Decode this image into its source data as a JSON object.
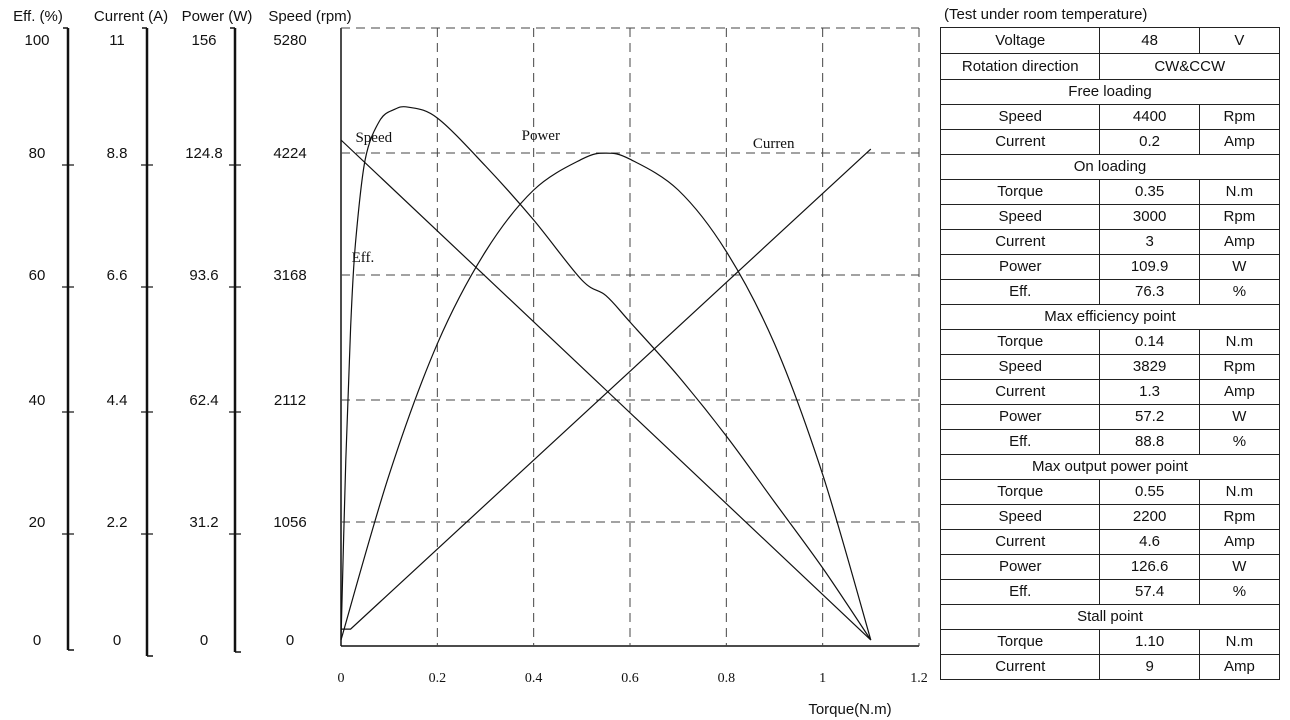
{
  "axes": [
    {
      "id": "eff",
      "title": "Eff. (%)",
      "ticks": [
        "100",
        "80",
        "60",
        "40",
        "20",
        "0"
      ]
    },
    {
      "id": "current",
      "title": "Current (A)",
      "ticks": [
        "11",
        "8.8",
        "6.6",
        "4.4",
        "2.2",
        "0"
      ]
    },
    {
      "id": "power",
      "title": "Power (W)",
      "ticks": [
        "156",
        "124.8",
        "93.6",
        "62.4",
        "31.2",
        "0"
      ]
    },
    {
      "id": "speed",
      "title": "Speed (rpm)",
      "ticks": [
        "5280",
        "4224",
        "3168",
        "2112",
        "1056",
        "0"
      ]
    }
  ],
  "chart_data": {
    "type": "line",
    "xlabel": "Torque(N.m)",
    "xlim": [
      0,
      1.2
    ],
    "x_ticks": [
      "0",
      "0.2",
      "0.4",
      "0.6",
      "0.8",
      "1",
      "1.2"
    ],
    "grid": true,
    "y_axes": {
      "eff": {
        "label": "Eff. (%)",
        "range": [
          0,
          100
        ]
      },
      "current": {
        "label": "Current (A)",
        "range": [
          0,
          11
        ]
      },
      "power": {
        "label": "Power (W)",
        "range": [
          0,
          156
        ]
      },
      "speed": {
        "label": "Speed (rpm)",
        "range": [
          0,
          5280
        ]
      }
    },
    "series": [
      {
        "name": "Speed",
        "axis": "speed",
        "x": [
          0,
          0.35,
          0.55,
          1.1
        ],
        "y": [
          4400,
          3000,
          2200,
          0
        ]
      },
      {
        "name": "Power",
        "axis": "power",
        "x": [
          0,
          0.1,
          0.2,
          0.3,
          0.4,
          0.5,
          0.55,
          0.6,
          0.7,
          0.8,
          0.9,
          1.0,
          1.1
        ],
        "y": [
          0,
          43,
          77,
          101,
          117,
          125,
          126.6,
          125,
          117,
          101,
          77,
          43,
          0
        ]
      },
      {
        "name": "Curren",
        "axis": "current",
        "x": [
          0,
          0.02,
          1.1
        ],
        "y": [
          0.2,
          0.2,
          9
        ]
      },
      {
        "name": "Eff.",
        "axis": "eff",
        "x": [
          0,
          0.01,
          0.02,
          0.03,
          0.05,
          0.08,
          0.11,
          0.14,
          0.2,
          0.3,
          0.4,
          0.5,
          0.55,
          0.6,
          0.7,
          0.8,
          0.9,
          1.0,
          1.1
        ],
        "y": [
          0,
          30,
          52,
          66,
          80,
          86.5,
          88.4,
          88.8,
          87,
          79,
          70,
          60,
          57.4,
          53,
          44,
          34,
          23,
          12,
          0
        ]
      }
    ],
    "curve_labels": [
      {
        "text": "Speed",
        "x": 0.03,
        "y_frac": 0.83
      },
      {
        "text": "Power",
        "x": 0.375,
        "y_frac": 0.833
      },
      {
        "text": "Curren",
        "x": 0.855,
        "y_frac": 0.82
      },
      {
        "text": "Eff.",
        "x": 0.022,
        "y_frac": 0.63
      }
    ]
  },
  "spec": {
    "title": "(Test under room temperature)",
    "rows": [
      {
        "cells": [
          "Voltage",
          "48",
          "V"
        ]
      },
      {
        "header": "Rotation direction",
        "span_value": "CW&CCW"
      },
      {
        "section": "Free loading"
      },
      {
        "cells": [
          "Speed",
          "4400",
          "Rpm"
        ]
      },
      {
        "cells": [
          "Current",
          "0.2",
          "Amp"
        ]
      },
      {
        "section": "On loading"
      },
      {
        "cells": [
          "Torque",
          "0.35",
          "N.m"
        ]
      },
      {
        "cells": [
          "Speed",
          "3000",
          "Rpm"
        ]
      },
      {
        "cells": [
          "Current",
          "3",
          "Amp"
        ]
      },
      {
        "cells": [
          "Power",
          "109.9",
          "W"
        ]
      },
      {
        "cells": [
          "Eff.",
          "76.3",
          "%"
        ]
      },
      {
        "section": "Max efficiency point"
      },
      {
        "cells": [
          "Torque",
          "0.14",
          "N.m"
        ]
      },
      {
        "cells": [
          "Speed",
          "3829",
          "Rpm"
        ]
      },
      {
        "cells": [
          "Current",
          "1.3",
          "Amp"
        ]
      },
      {
        "cells": [
          "Power",
          "57.2",
          "W"
        ]
      },
      {
        "cells": [
          "Eff.",
          "88.8",
          "%"
        ]
      },
      {
        "section": "Max output power point"
      },
      {
        "cells": [
          "Torque",
          "0.55",
          "N.m"
        ]
      },
      {
        "cells": [
          "Speed",
          "2200",
          "Rpm"
        ]
      },
      {
        "cells": [
          "Current",
          "4.6",
          "Amp"
        ]
      },
      {
        "cells": [
          "Power",
          "126.6",
          "W"
        ]
      },
      {
        "cells": [
          "Eff.",
          "57.4",
          "%"
        ]
      },
      {
        "section": "Stall point"
      },
      {
        "cells": [
          "Torque",
          "1.10",
          "N.m"
        ]
      },
      {
        "cells": [
          "Current",
          "9",
          "Amp"
        ]
      }
    ]
  }
}
